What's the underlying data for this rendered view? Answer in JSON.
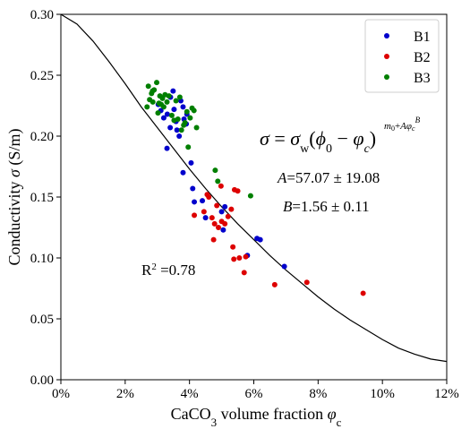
{
  "chart_data": {
    "type": "scatter",
    "xlabel": {
      "main": "CaCO",
      "sub3": "3",
      "rest": " volume fraction ",
      "phi": "φ",
      "sub": "c"
    },
    "ylabel": {
      "main": "Conductivity ",
      "sigma": "σ",
      "unit": " (S/m)"
    },
    "xlim": [
      0,
      0.12
    ],
    "ylim": [
      0,
      0.3
    ],
    "x_ticks": [
      0,
      0.02,
      0.04,
      0.06,
      0.08,
      0.1,
      0.12
    ],
    "x_tick_labels": [
      "0%",
      "2%",
      "4%",
      "6%",
      "8%",
      "10%",
      "12%"
    ],
    "y_ticks": [
      0,
      0.05,
      0.1,
      0.15,
      0.2,
      0.25,
      0.3
    ],
    "y_tick_labels": [
      "0.00",
      "0.05",
      "0.10",
      "0.15",
      "0.20",
      "0.25",
      "0.30"
    ],
    "legend_position": "top-right",
    "series": [
      {
        "name": "B1",
        "color": "#0000cc",
        "points": [
          [
            0.0303,
            0.226
          ],
          [
            0.0311,
            0.221
          ],
          [
            0.032,
            0.215
          ],
          [
            0.0331,
            0.218
          ],
          [
            0.0341,
            0.232
          ],
          [
            0.0349,
            0.237
          ],
          [
            0.0352,
            0.222
          ],
          [
            0.0358,
            0.212
          ],
          [
            0.0361,
            0.205
          ],
          [
            0.0368,
            0.2
          ],
          [
            0.0373,
            0.229
          ],
          [
            0.038,
            0.224
          ],
          [
            0.0383,
            0.214
          ],
          [
            0.039,
            0.21
          ],
          [
            0.0392,
            0.218
          ],
          [
            0.033,
            0.19
          ],
          [
            0.038,
            0.17
          ],
          [
            0.0405,
            0.178
          ],
          [
            0.041,
            0.157
          ],
          [
            0.0415,
            0.146
          ],
          [
            0.044,
            0.147
          ],
          [
            0.045,
            0.133
          ],
          [
            0.05,
            0.138
          ],
          [
            0.0505,
            0.123
          ],
          [
            0.051,
            0.142
          ],
          [
            0.058,
            0.102
          ],
          [
            0.061,
            0.116
          ],
          [
            0.062,
            0.115
          ],
          [
            0.0695,
            0.093
          ],
          [
            0.034,
            0.207
          ]
        ]
      },
      {
        "name": "B2",
        "color": "#dd0000",
        "points": [
          [
            0.0415,
            0.135
          ],
          [
            0.0445,
            0.138
          ],
          [
            0.0455,
            0.152
          ],
          [
            0.046,
            0.15
          ],
          [
            0.047,
            0.133
          ],
          [
            0.0475,
            0.115
          ],
          [
            0.0478,
            0.128
          ],
          [
            0.0485,
            0.143
          ],
          [
            0.049,
            0.125
          ],
          [
            0.0498,
            0.159
          ],
          [
            0.05,
            0.13
          ],
          [
            0.051,
            0.128
          ],
          [
            0.052,
            0.134
          ],
          [
            0.053,
            0.14
          ],
          [
            0.0535,
            0.109
          ],
          [
            0.0538,
            0.099
          ],
          [
            0.054,
            0.156
          ],
          [
            0.055,
            0.155
          ],
          [
            0.0555,
            0.1
          ],
          [
            0.057,
            0.088
          ],
          [
            0.0575,
            0.101
          ],
          [
            0.0665,
            0.078
          ],
          [
            0.0765,
            0.08
          ],
          [
            0.094,
            0.071
          ]
        ]
      },
      {
        "name": "B3",
        "color": "#007f00",
        "points": [
          [
            0.0268,
            0.224
          ],
          [
            0.0272,
            0.241
          ],
          [
            0.0276,
            0.23
          ],
          [
            0.0282,
            0.235
          ],
          [
            0.0286,
            0.228
          ],
          [
            0.029,
            0.238
          ],
          [
            0.0298,
            0.244
          ],
          [
            0.0302,
            0.219
          ],
          [
            0.0308,
            0.233
          ],
          [
            0.0312,
            0.226
          ],
          [
            0.0316,
            0.231
          ],
          [
            0.032,
            0.224
          ],
          [
            0.0324,
            0.234
          ],
          [
            0.033,
            0.228
          ],
          [
            0.0336,
            0.233
          ],
          [
            0.0345,
            0.217
          ],
          [
            0.0352,
            0.213
          ],
          [
            0.0358,
            0.229
          ],
          [
            0.0364,
            0.214
          ],
          [
            0.037,
            0.232
          ],
          [
            0.0375,
            0.205
          ],
          [
            0.0382,
            0.209
          ],
          [
            0.0386,
            0.211
          ],
          [
            0.0392,
            0.22
          ],
          [
            0.0396,
            0.191
          ],
          [
            0.0402,
            0.215
          ],
          [
            0.0408,
            0.223
          ],
          [
            0.0414,
            0.221
          ],
          [
            0.0422,
            0.207
          ],
          [
            0.048,
            0.172
          ],
          [
            0.0488,
            0.163
          ],
          [
            0.059,
            0.151
          ],
          [
            0.0285,
            0.237
          ],
          [
            0.0305,
            0.227
          ]
        ]
      }
    ],
    "fit_curve": {
      "color": "#000000",
      "points": [
        [
          0.0,
          0.3
        ],
        [
          0.005,
          0.292
        ],
        [
          0.01,
          0.278
        ],
        [
          0.015,
          0.261
        ],
        [
          0.02,
          0.243
        ],
        [
          0.025,
          0.224
        ],
        [
          0.03,
          0.207
        ],
        [
          0.035,
          0.19
        ],
        [
          0.04,
          0.173
        ],
        [
          0.045,
          0.157
        ],
        [
          0.05,
          0.142
        ],
        [
          0.055,
          0.128
        ],
        [
          0.06,
          0.115
        ],
        [
          0.065,
          0.102
        ],
        [
          0.07,
          0.09
        ],
        [
          0.075,
          0.079
        ],
        [
          0.08,
          0.068
        ],
        [
          0.085,
          0.058
        ],
        [
          0.09,
          0.049
        ],
        [
          0.095,
          0.041
        ],
        [
          0.1,
          0.033
        ],
        [
          0.105,
          0.026
        ],
        [
          0.11,
          0.021
        ],
        [
          0.115,
          0.017
        ],
        [
          0.12,
          0.015
        ]
      ]
    },
    "annotations": {
      "formula": {
        "sigma": "σ",
        "eq": " = ",
        "sigma_w": "σ",
        "w": "w",
        "open": "(",
        "phi0": "ϕ",
        "zero": "0",
        "minus": " − ",
        "phic": "φ",
        "c": "c",
        "close": ")",
        "exponent": "m",
        "exp_sub0": "0",
        "exp_plus": "+",
        "exp_A": "A",
        "exp_phi": "φ",
        "exp_c": "c",
        "exp_B": "B"
      },
      "param_A": {
        "name": "A",
        "value": "=57.07 ± 19.08"
      },
      "param_B": {
        "name": "B",
        "value": "=1.56 ± 0.11"
      },
      "r2": {
        "prefix": "R",
        "sup": "2",
        "value": " =0.78"
      }
    }
  }
}
